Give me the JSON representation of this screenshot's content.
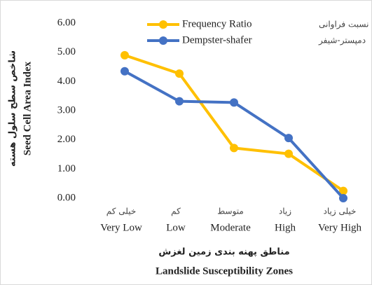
{
  "chart_data": {
    "type": "line",
    "categories": [
      "Very Low",
      "Low",
      "Moderate",
      "High",
      "Very High"
    ],
    "categories_fa": [
      "خیلی کم",
      "کم",
      "متوسط",
      "زیاد",
      "خیلی زیاد"
    ],
    "x_label": "Landslide Susceptibility Zones",
    "x_label_fa": "مناطق پهنه بندی زمین لغزش",
    "y_label": "Seed Cell Area Index",
    "y_label_fa": "شاخص سطح سلول هسته",
    "ylim": [
      0,
      6
    ],
    "yticks": [
      {
        "value": 0,
        "label": "0.00"
      },
      {
        "value": 1,
        "label": "1.00"
      },
      {
        "value": 2,
        "label": "2.00"
      },
      {
        "value": 3,
        "label": "3.00"
      },
      {
        "value": 4,
        "label": "4.00"
      },
      {
        "value": 5,
        "label": "5.00"
      },
      {
        "value": 6,
        "label": "6.00"
      }
    ],
    "legend_position": "top",
    "series": [
      {
        "name": "Frequency Ratio",
        "name_fa": "نسبت فراوانی",
        "color": "#FFC000",
        "values": [
          4.9,
          4.27,
          1.72,
          1.52,
          0.25
        ]
      },
      {
        "name": "Dempster-shafer",
        "name_fa": "دمپستر-شیفر",
        "color": "#4472C4",
        "values": [
          4.35,
          3.32,
          3.28,
          2.06,
          0.0
        ]
      }
    ]
  }
}
